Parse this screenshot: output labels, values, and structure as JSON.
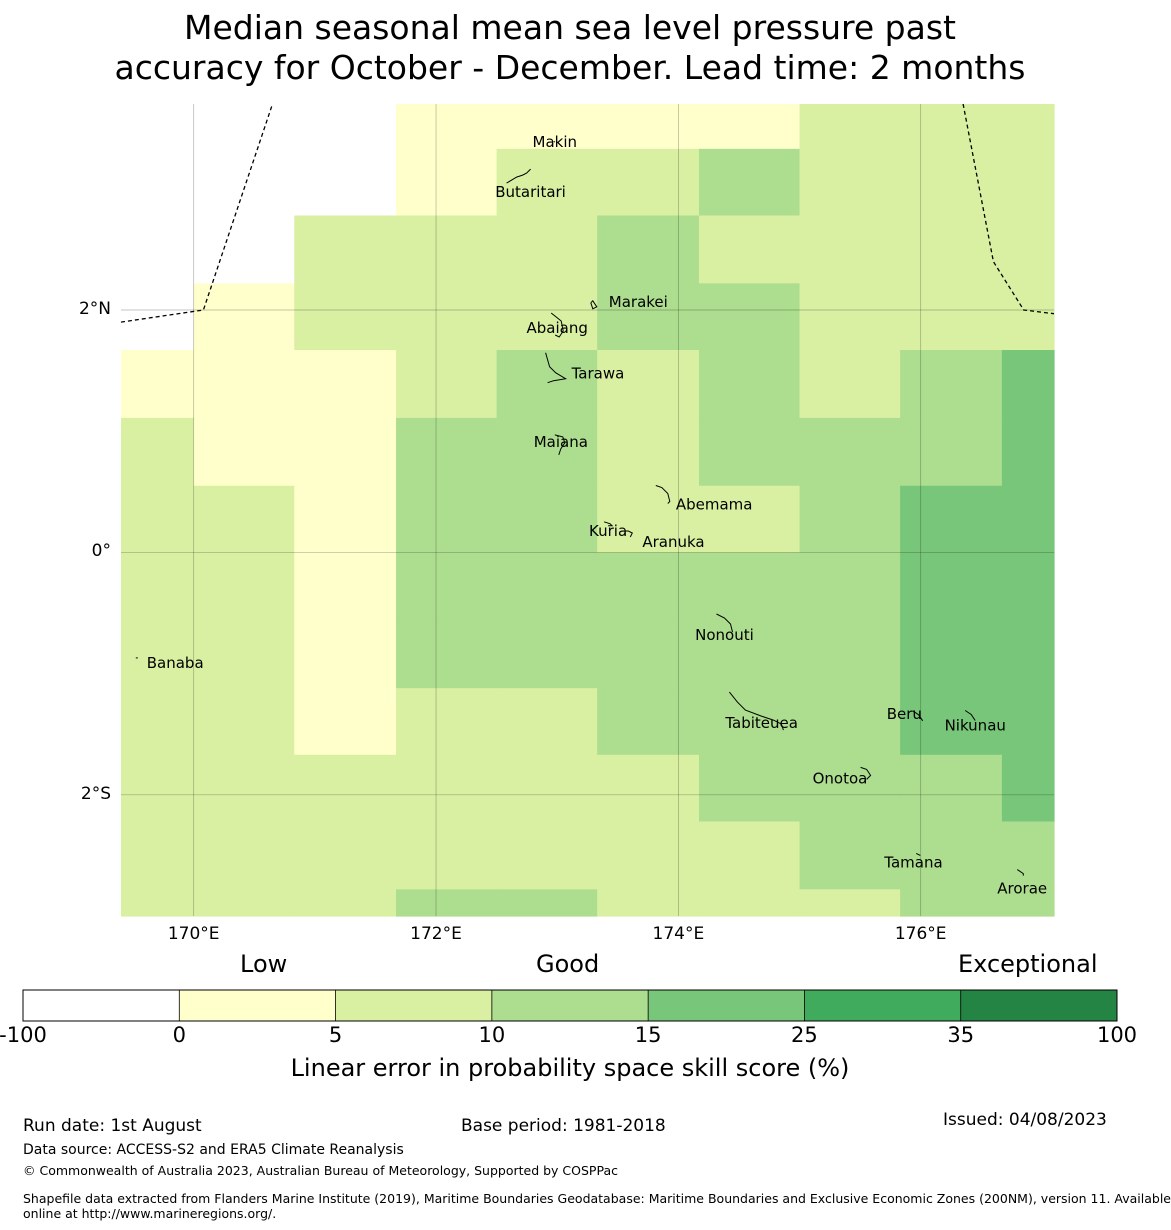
{
  "title": {
    "line1": "Median seasonal mean sea level pressure past",
    "line2": "accuracy for October - December. Lead time: 2 months"
  },
  "map": {
    "lon_range": [
      169.4,
      177.1
    ],
    "lat_range": [
      -3.0,
      3.7
    ],
    "lat_ticks": [
      {
        "value": 2,
        "label": "2°N"
      },
      {
        "value": 0,
        "label": "0°"
      },
      {
        "value": -2,
        "label": "2°S"
      }
    ],
    "lon_ticks": [
      {
        "value": 170,
        "label": "170°E"
      },
      {
        "value": 172,
        "label": "172°E"
      },
      {
        "value": 174,
        "label": "174°E"
      },
      {
        "value": 176,
        "label": "176°E"
      }
    ],
    "grid_lines": true,
    "cell_columns": [
      [
        169.4,
        170.0
      ],
      [
        170.0,
        170.83
      ],
      [
        170.83,
        171.67
      ],
      [
        171.67,
        172.5
      ],
      [
        172.5,
        173.33
      ],
      [
        173.33,
        174.17
      ],
      [
        174.17,
        175.0
      ],
      [
        175.0,
        175.83
      ],
      [
        175.83,
        176.67
      ],
      [
        176.67,
        177.1
      ]
    ],
    "cell_rows": [
      [
        3.7,
        3.33
      ],
      [
        3.33,
        2.78
      ],
      [
        2.78,
        2.22
      ],
      [
        2.22,
        1.67
      ],
      [
        1.67,
        1.11
      ],
      [
        1.11,
        0.55
      ],
      [
        0.55,
        0.0
      ],
      [
        0.0,
        -0.55
      ],
      [
        -0.55,
        -1.12
      ],
      [
        -1.12,
        -1.67
      ],
      [
        -1.67,
        -2.22
      ],
      [
        -2.22,
        -2.78
      ],
      [
        -2.78,
        -3.0
      ]
    ],
    "skill_grid": [
      [
        null,
        null,
        null,
        1,
        1,
        1,
        1,
        2,
        2,
        2
      ],
      [
        null,
        null,
        null,
        1,
        2,
        2,
        3,
        2,
        2,
        2
      ],
      [
        null,
        null,
        2,
        2,
        2,
        3,
        2,
        2,
        2,
        2
      ],
      [
        null,
        1,
        2,
        2,
        2,
        3,
        3,
        2,
        2,
        2
      ],
      [
        1,
        1,
        1,
        2,
        3,
        2,
        3,
        2,
        3,
        4
      ],
      [
        2,
        1,
        1,
        3,
        3,
        2,
        3,
        3,
        3,
        4
      ],
      [
        2,
        2,
        1,
        3,
        3,
        2,
        2,
        3,
        4,
        4
      ],
      [
        2,
        2,
        1,
        3,
        3,
        3,
        3,
        3,
        4,
        4
      ],
      [
        2,
        2,
        1,
        3,
        3,
        3,
        3,
        3,
        4,
        4
      ],
      [
        2,
        2,
        1,
        2,
        2,
        3,
        3,
        3,
        4,
        4
      ],
      [
        2,
        2,
        2,
        2,
        2,
        2,
        3,
        3,
        3,
        4
      ],
      [
        2,
        2,
        2,
        2,
        2,
        2,
        2,
        3,
        3,
        3
      ],
      [
        2,
        2,
        2,
        3,
        3,
        2,
        2,
        2,
        3,
        3
      ]
    ],
    "boundaries": [
      [
        [
          169.4,
          1.9
        ],
        [
          170.08,
          2.0
        ],
        [
          170.65,
          3.7
        ]
      ],
      [
        [
          176.35,
          3.7
        ],
        [
          176.6,
          2.4
        ],
        [
          176.85,
          2.0
        ],
        [
          177.1,
          1.97
        ]
      ]
    ],
    "islands": [
      {
        "name": "Makin",
        "lon": 172.98,
        "lat": 3.36
      },
      {
        "name": "Butaritari",
        "lon": 172.78,
        "lat": 3.08
      },
      {
        "name": "Marakei",
        "lon": 173.31,
        "lat": 2.01
      },
      {
        "name": "Abaiang",
        "lon": 173.0,
        "lat": 1.86
      },
      {
        "name": "Tarawa",
        "lon": 173.02,
        "lat": 1.45
      },
      {
        "name": "Maiana",
        "lon": 173.03,
        "lat": 0.92
      },
      {
        "name": "Abemama",
        "lon": 173.88,
        "lat": 0.42
      },
      {
        "name": "Kuria",
        "lon": 173.42,
        "lat": 0.22
      },
      {
        "name": "Aranuka",
        "lon": 173.62,
        "lat": 0.16
      },
      {
        "name": "Nonouti",
        "lon": 174.43,
        "lat": -0.64
      },
      {
        "name": "Banaba",
        "lon": 169.53,
        "lat": -0.87
      },
      {
        "name": "Tabiteuea",
        "lon": 174.85,
        "lat": -1.4
      },
      {
        "name": "Beru",
        "lon": 176.0,
        "lat": -1.34
      },
      {
        "name": "Nikunau",
        "lon": 176.45,
        "lat": -1.37
      },
      {
        "name": "Onotoa",
        "lon": 175.57,
        "lat": -1.84
      },
      {
        "name": "Tamana",
        "lon": 175.98,
        "lat": -2.5
      },
      {
        "name": "Arorae",
        "lon": 176.83,
        "lat": -2.65
      }
    ]
  },
  "colorbar": {
    "category_labels": [
      "Low",
      "Good",
      "Exceptional"
    ],
    "ticks": [
      "-100",
      "0",
      "5",
      "10",
      "15",
      "25",
      "35",
      "100"
    ],
    "colors": [
      "#ffffff",
      "#ffffcc",
      "#d9f0a3",
      "#addd8e",
      "#78c679",
      "#41ab5d",
      "#238443"
    ],
    "label": "Linear error in probability space skill score (%)"
  },
  "footer": {
    "run_date": "Run date: 1st August",
    "base_period": "Base period: 1981-2018",
    "issued": "Issued: 04/08/2023",
    "data_source": "Data source: ACCESS-S2 and ERA5 Climate Reanalysis",
    "copyright": "© Commonwealth of Australia 2023, Australian Bureau of Meteorology, Supported by COSPPac",
    "shapefile_line1": "Shapefile data extracted from Flanders Marine Institute (2019), Maritime Boundaries Geodatabase: Maritime Boundaries and Exclusive Economic Zones (200NM), version 11. Available",
    "shapefile_line2": "online at http://www.marineregions.org/."
  }
}
